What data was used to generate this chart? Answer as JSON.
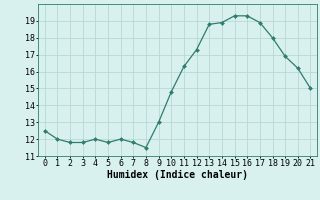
{
  "x": [
    0,
    1,
    2,
    3,
    4,
    5,
    6,
    7,
    8,
    9,
    10,
    11,
    12,
    13,
    14,
    15,
    16,
    17,
    18,
    19,
    20,
    21
  ],
  "y": [
    12.5,
    12.0,
    11.8,
    11.8,
    12.0,
    11.8,
    12.0,
    11.8,
    11.5,
    13.0,
    14.8,
    16.3,
    17.3,
    18.8,
    18.9,
    19.3,
    19.3,
    18.9,
    18.0,
    16.9,
    16.2,
    15.0
  ],
  "line_color": "#2e7d6e",
  "marker_color": "#2e7d6e",
  "bg_color": "#d8f0ee",
  "grid_color": "#b8d8d4",
  "xlabel": "Humidex (Indice chaleur)",
  "xlabel_fontsize": 7,
  "tick_fontsize": 6,
  "ylim": [
    11,
    20
  ],
  "yticks": [
    11,
    12,
    13,
    14,
    15,
    16,
    17,
    18,
    19
  ],
  "xlim": [
    -0.5,
    21.5
  ],
  "xticks": [
    0,
    1,
    2,
    3,
    4,
    5,
    6,
    7,
    8,
    9,
    10,
    11,
    12,
    13,
    14,
    15,
    16,
    17,
    18,
    19,
    20,
    21
  ]
}
